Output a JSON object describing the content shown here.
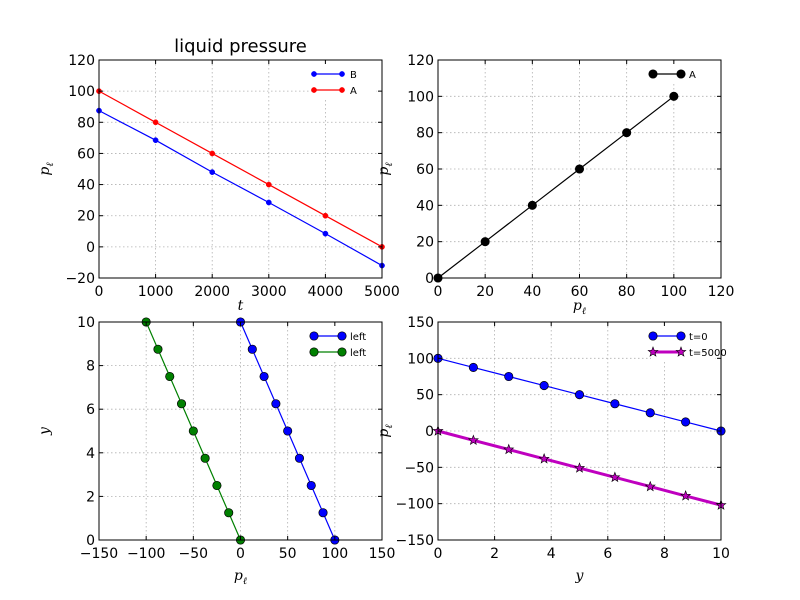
{
  "chart_data": [
    {
      "type": "line",
      "title": "liquid pressure",
      "xlabel": "t",
      "ylabel": "p_ℓ",
      "ylabel_main": "p",
      "ylabel_sub": "ℓ",
      "xlim": [
        0,
        5000
      ],
      "ylim": [
        -20,
        120
      ],
      "xticks": [
        0,
        1000,
        2000,
        3000,
        4000,
        5000
      ],
      "yticks": [
        -20,
        0,
        20,
        40,
        60,
        80,
        100,
        120
      ],
      "grid": true,
      "legend": "top-right",
      "series": [
        {
          "name": "B",
          "color": "#0000ff",
          "marker": "circle-small",
          "x": [
            0,
            1000,
            2000,
            3000,
            4000,
            5000
          ],
          "y": [
            87.5,
            68.5,
            48,
            28.5,
            8.5,
            -12
          ]
        },
        {
          "name": "A",
          "color": "#ff0000",
          "marker": "circle-small",
          "x": [
            0,
            1000,
            2000,
            3000,
            4000,
            5000
          ],
          "y": [
            100,
            80,
            60,
            40,
            20,
            0
          ]
        }
      ]
    },
    {
      "type": "line",
      "title": "",
      "xlabel": "p_ℓ",
      "xlabel_main": "p",
      "xlabel_sub": "ℓ",
      "ylabel": "p_ℓ",
      "ylabel_main": "p",
      "ylabel_sub": "ℓ",
      "xlim": [
        0,
        120
      ],
      "ylim": [
        0,
        120
      ],
      "xticks": [
        0,
        20,
        40,
        60,
        80,
        100,
        120
      ],
      "yticks": [
        0,
        20,
        40,
        60,
        80,
        100,
        120
      ],
      "grid": true,
      "legend": "top-right",
      "series": [
        {
          "name": "A",
          "color": "#000000",
          "marker": "circle",
          "x": [
            0,
            20,
            40,
            60,
            80,
            100
          ],
          "y": [
            0,
            20,
            40,
            60,
            80,
            100
          ]
        }
      ]
    },
    {
      "type": "line",
      "title": "",
      "xlabel": "p_ℓ",
      "xlabel_main": "p",
      "xlabel_sub": "ℓ",
      "ylabel": "y",
      "xlim": [
        -150,
        150
      ],
      "ylim": [
        0,
        10
      ],
      "xticks": [
        -150,
        -100,
        -50,
        0,
        50,
        100,
        150
      ],
      "yticks": [
        0,
        2,
        4,
        6,
        8,
        10
      ],
      "grid": true,
      "legend": "top-right",
      "series": [
        {
          "name": "left",
          "color": "#0000ff",
          "marker": "circle",
          "x": [
            100,
            87.5,
            75,
            62.5,
            50,
            37.5,
            25,
            12.5,
            0
          ],
          "y": [
            0,
            1.25,
            2.5,
            3.75,
            5,
            6.25,
            7.5,
            8.75,
            10
          ]
        },
        {
          "name": "left",
          "color": "#008000",
          "marker": "circle",
          "x": [
            0,
            -12.5,
            -25,
            -37.5,
            -50,
            -62.5,
            -75,
            -87.5,
            -100
          ],
          "y": [
            0,
            1.25,
            2.5,
            3.75,
            5,
            6.25,
            7.5,
            8.75,
            10
          ]
        }
      ]
    },
    {
      "type": "line",
      "title": "",
      "xlabel": "y",
      "ylabel": "p_ℓ",
      "ylabel_main": "p",
      "ylabel_sub": "ℓ",
      "xlim": [
        0,
        10
      ],
      "ylim": [
        -150,
        150
      ],
      "xticks": [
        0,
        2,
        4,
        6,
        8,
        10
      ],
      "yticks": [
        -150,
        -100,
        -50,
        0,
        50,
        100,
        150
      ],
      "grid": true,
      "legend": "top-right",
      "series": [
        {
          "name": "t=0",
          "color": "#0000ff",
          "marker": "circle",
          "x": [
            0,
            1.25,
            2.5,
            3.75,
            5,
            6.25,
            7.5,
            8.75,
            10
          ],
          "y": [
            100,
            87.5,
            75,
            62.5,
            50,
            37.5,
            25,
            12.5,
            0
          ]
        },
        {
          "name": "t=5000",
          "color": "#bf00bf",
          "marker": "star",
          "x": [
            0,
            1.25,
            2.5,
            3.75,
            5,
            6.25,
            7.5,
            8.75,
            10
          ],
          "y": [
            0,
            -12.8,
            -25.5,
            -38.3,
            -51,
            -63.8,
            -76.5,
            -89.3,
            -102
          ]
        }
      ]
    }
  ]
}
